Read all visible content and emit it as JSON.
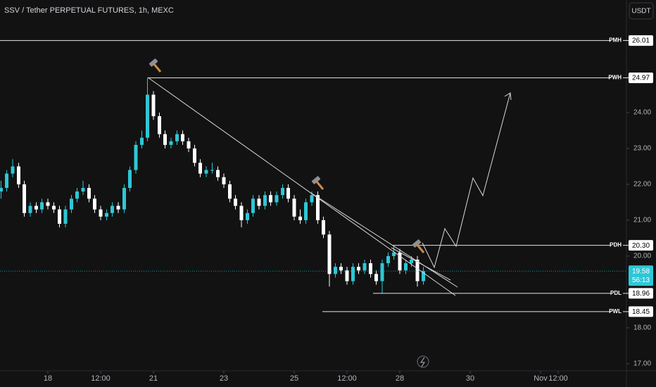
{
  "chart_data": {
    "type": "candlestick",
    "title": "SSV / Tether PERPETUAL FUTURES, 1h, MEXC",
    "currency_button": "USDT",
    "up_color": "#2ec7d6",
    "down_color": "#ffffff",
    "grid": false,
    "xlim": [
      16.64,
      34.44
    ],
    "ylim": [
      16.8,
      27.14
    ],
    "xticks": [
      18,
      {
        "value": 19.5,
        "label": "12:00"
      },
      21,
      23,
      25,
      {
        "value": 26.5,
        "label": "12:00"
      },
      28,
      30,
      {
        "value": 32,
        "label": "Nov"
      },
      {
        "value": 32.5,
        "label": "12:00"
      }
    ],
    "yticks": [
      {
        "value": 17,
        "label": "17.00"
      },
      {
        "value": 18,
        "label": "18.00"
      },
      {
        "value": 20,
        "label": "20.00"
      },
      {
        "value": 21,
        "label": "21.00"
      },
      {
        "value": 22,
        "label": "22.00"
      },
      {
        "value": 23,
        "label": "23.00"
      },
      {
        "value": 24,
        "label": "24.00"
      }
    ],
    "x": [
      16.67,
      16.83,
      17.0,
      17.17,
      17.33,
      17.5,
      17.67,
      17.83,
      18.0,
      18.17,
      18.33,
      18.5,
      18.67,
      18.83,
      19.0,
      19.17,
      19.33,
      19.5,
      19.67,
      19.83,
      20.0,
      20.17,
      20.33,
      20.5,
      20.67,
      20.83,
      21.0,
      21.17,
      21.33,
      21.5,
      21.67,
      21.83,
      22.0,
      22.17,
      22.33,
      22.5,
      22.67,
      22.83,
      23.0,
      23.17,
      23.33,
      23.5,
      23.67,
      23.83,
      24.0,
      24.17,
      24.33,
      24.5,
      24.67,
      24.83,
      25.0,
      25.17,
      25.33,
      25.5,
      25.67,
      25.83,
      26.0,
      26.17,
      26.33,
      26.5,
      26.67,
      26.83,
      27.0,
      27.17,
      27.33,
      27.5,
      27.67,
      27.83,
      28.0,
      28.17,
      28.33,
      28.5,
      28.67
    ],
    "open": [
      21.8,
      21.9,
      22.3,
      22.5,
      22.0,
      21.2,
      21.4,
      21.3,
      21.5,
      21.4,
      21.3,
      20.9,
      21.3,
      21.6,
      21.8,
      21.9,
      21.6,
      21.3,
      21.1,
      21.2,
      21.4,
      21.3,
      21.9,
      22.4,
      23.1,
      23.3,
      24.5,
      23.9,
      23.4,
      23.1,
      23.2,
      23.4,
      23.2,
      23.0,
      22.6,
      22.3,
      22.4,
      22.4,
      22.2,
      22.0,
      21.6,
      21.4,
      21.0,
      21.2,
      21.6,
      21.4,
      21.7,
      21.5,
      21.7,
      21.9,
      21.6,
      21.1,
      21.0,
      21.5,
      21.7,
      21.0,
      20.6,
      19.5,
      19.7,
      19.6,
      19.3,
      19.7,
      19.6,
      19.8,
      19.5,
      19.3,
      19.8,
      20.0,
      20.1,
      19.6,
      19.8,
      19.9,
      19.3
    ],
    "high": [
      22.1,
      22.4,
      22.7,
      22.6,
      22.1,
      21.5,
      21.5,
      21.6,
      21.6,
      21.5,
      21.4,
      21.4,
      21.7,
      21.9,
      22.1,
      22.0,
      21.7,
      21.4,
      21.3,
      21.5,
      21.5,
      22.0,
      22.5,
      23.2,
      23.5,
      24.97,
      24.6,
      24.0,
      23.5,
      23.3,
      23.5,
      23.5,
      23.3,
      23.1,
      22.7,
      22.5,
      22.6,
      22.5,
      22.3,
      22.1,
      21.7,
      21.5,
      21.3,
      21.7,
      21.7,
      21.8,
      21.8,
      21.8,
      22.0,
      22.0,
      21.7,
      21.3,
      21.6,
      21.8,
      21.8,
      21.1,
      20.7,
      19.8,
      19.8,
      19.7,
      19.8,
      19.8,
      19.9,
      19.9,
      19.6,
      19.9,
      20.1,
      20.3,
      20.2,
      19.9,
      20.0,
      20.0,
      19.7
    ],
    "low": [
      21.6,
      21.8,
      22.2,
      21.9,
      21.1,
      21.1,
      21.2,
      21.2,
      21.3,
      21.2,
      20.8,
      20.8,
      21.2,
      21.5,
      21.7,
      21.5,
      21.2,
      21.0,
      21.0,
      21.1,
      21.2,
      21.2,
      21.8,
      22.3,
      23.0,
      23.2,
      23.8,
      23.3,
      23.0,
      23.0,
      23.1,
      23.1,
      22.9,
      22.5,
      22.2,
      22.2,
      22.3,
      22.1,
      21.9,
      21.5,
      21.3,
      20.8,
      20.9,
      21.1,
      21.3,
      21.3,
      21.4,
      21.4,
      21.6,
      21.5,
      21.0,
      20.9,
      20.9,
      21.4,
      20.9,
      20.5,
      19.15,
      19.4,
      19.5,
      19.2,
      19.2,
      19.5,
      19.5,
      19.4,
      19.2,
      18.96,
      19.7,
      19.9,
      19.5,
      19.5,
      19.7,
      19.15,
      19.2
    ],
    "close": [
      21.9,
      22.3,
      22.5,
      22.0,
      21.2,
      21.4,
      21.3,
      21.5,
      21.4,
      21.3,
      20.9,
      21.3,
      21.6,
      21.8,
      21.9,
      21.6,
      21.3,
      21.1,
      21.2,
      21.4,
      21.3,
      21.9,
      22.4,
      23.1,
      23.3,
      24.5,
      23.9,
      23.4,
      23.1,
      23.2,
      23.4,
      23.2,
      23.0,
      22.6,
      22.3,
      22.4,
      22.4,
      22.2,
      22.0,
      21.6,
      21.4,
      21.0,
      21.2,
      21.6,
      21.4,
      21.7,
      21.5,
      21.7,
      21.9,
      21.6,
      21.1,
      21.0,
      21.5,
      21.7,
      21.0,
      20.6,
      19.5,
      19.7,
      19.6,
      19.3,
      19.7,
      19.6,
      19.8,
      19.5,
      19.3,
      19.8,
      20.0,
      20.1,
      19.6,
      19.8,
      19.9,
      19.3,
      19.58
    ],
    "levels": [
      {
        "tag": "PMH",
        "value": 26.01,
        "label": "26.01",
        "start": 16.64
      },
      {
        "tag": "PWH",
        "value": 24.97,
        "label": "24.97",
        "start": 20.84
      },
      {
        "tag": "PDH",
        "value": 20.3,
        "label": "20.30",
        "start": 27.78
      },
      {
        "tag": "PDL",
        "value": 18.96,
        "label": "18.96",
        "start": 27.24
      },
      {
        "tag": "PWL",
        "value": 18.45,
        "label": "18.45",
        "start": 25.8
      }
    ],
    "last_price": {
      "value": 19.58,
      "label": "19.58",
      "countdown": "56:13"
    }
  }
}
